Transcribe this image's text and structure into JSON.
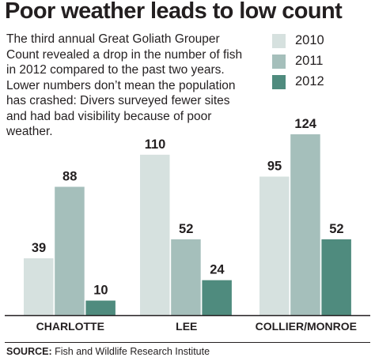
{
  "headline": "Poor weather leads to low count",
  "intro": "The third annual Great Goliath Grouper Count revealed a drop in the number of fish in 2012 compared to the past two years. Lower numbers don’t mean the population has crashed: Divers surveyed fewer sites and had bad visibility because of poor weather.",
  "source": {
    "label": "SOURCE:",
    "text": "Fish and Wildlife Research Institute"
  },
  "chart_data": {
    "type": "bar",
    "title": "",
    "xlabel": "",
    "ylabel": "",
    "ylim": [
      0,
      124
    ],
    "grid": false,
    "legend_position": "top-right",
    "categories": [
      "CHARLOTTE",
      "LEE",
      "COLLIER/MONROE"
    ],
    "series": [
      {
        "name": "2010",
        "color": "#d6e1df",
        "values": [
          39,
          110,
          95
        ]
      },
      {
        "name": "2011",
        "color": "#a5bfbb",
        "values": [
          88,
          52,
          124
        ]
      },
      {
        "name": "2012",
        "color": "#4f8b7e",
        "values": [
          10,
          24,
          52
        ]
      }
    ],
    "data_labels": true
  }
}
